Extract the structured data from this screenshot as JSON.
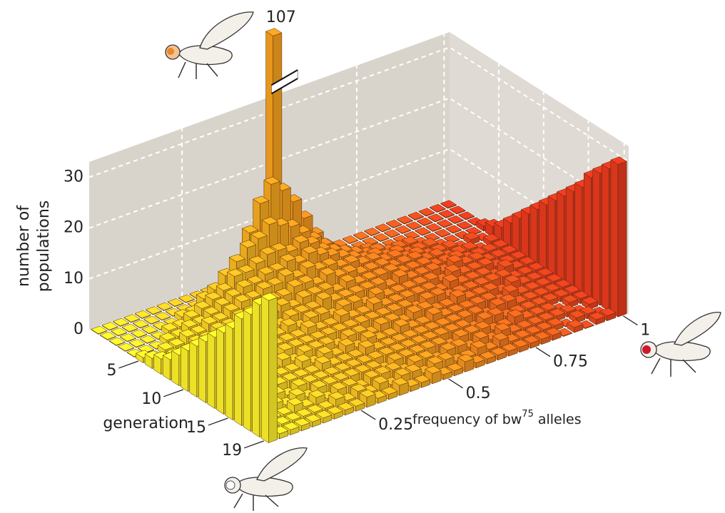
{
  "chart_data": {
    "type": "bar3d",
    "x": [
      0,
      0.03125,
      0.0625,
      0.09375,
      0.125,
      0.15625,
      0.1875,
      0.21875,
      0.25,
      0.28125,
      0.3125,
      0.34375,
      0.375,
      0.40625,
      0.4375,
      0.46875,
      0.5,
      0.53125,
      0.5625,
      0.59375,
      0.625,
      0.65625,
      0.6875,
      0.71875,
      0.75,
      0.78125,
      0.8125,
      0.84375,
      0.875,
      0.90625,
      0.9375,
      0.96875,
      1
    ],
    "generations": [
      0,
      1,
      2,
      3,
      4,
      5,
      6,
      7,
      8,
      9,
      10,
      11,
      12,
      13,
      14,
      15,
      16,
      17,
      18,
      19
    ],
    "z": [
      [
        0,
        0,
        0,
        0,
        0,
        0,
        0,
        0,
        0,
        0,
        0,
        0,
        0,
        0,
        0,
        0,
        107,
        0,
        0,
        0,
        0,
        0,
        0,
        0,
        0,
        0,
        0,
        0,
        0,
        0,
        0,
        0,
        0
      ],
      [
        0,
        0,
        0,
        0,
        0,
        0,
        0,
        0,
        0,
        0,
        1,
        3,
        6,
        11,
        16,
        19,
        17,
        14,
        10,
        6,
        3,
        1,
        0,
        0,
        0,
        0,
        0,
        0,
        0,
        0,
        0,
        0,
        0
      ],
      [
        0,
        0,
        0,
        0,
        0,
        0,
        1,
        1,
        3,
        4,
        6,
        8,
        10,
        11,
        13,
        12,
        11,
        9,
        7,
        5,
        3,
        2,
        1,
        1,
        0,
        0,
        0,
        0,
        0,
        0,
        0,
        0,
        0
      ],
      [
        0,
        0,
        0,
        0,
        1,
        1,
        2,
        3,
        4,
        5,
        7,
        7,
        8,
        9,
        9,
        8,
        9,
        8,
        6,
        5,
        4,
        3,
        2,
        2,
        1,
        1,
        1,
        0,
        0,
        0,
        0,
        0,
        0
      ],
      [
        0,
        0,
        0,
        1,
        1,
        2,
        2,
        3,
        4,
        5,
        6,
        6,
        7,
        7,
        8,
        7,
        8,
        7,
        6,
        5,
        4,
        3,
        3,
        2,
        2,
        1,
        1,
        1,
        0,
        0,
        0,
        0,
        1
      ],
      [
        1,
        0,
        1,
        1,
        2,
        2,
        3,
        3,
        4,
        5,
        5,
        6,
        6,
        7,
        6,
        7,
        6,
        6,
        5,
        5,
        4,
        4,
        3,
        3,
        2,
        2,
        1,
        1,
        1,
        0,
        1,
        0,
        2
      ],
      [
        2,
        1,
        1,
        1,
        2,
        2,
        3,
        3,
        4,
        4,
        5,
        5,
        5,
        6,
        6,
        5,
        6,
        5,
        5,
        4,
        4,
        4,
        3,
        3,
        3,
        2,
        2,
        1,
        1,
        1,
        0,
        1,
        3
      ],
      [
        3,
        1,
        1,
        2,
        2,
        2,
        3,
        3,
        3,
        4,
        4,
        5,
        4,
        5,
        5,
        5,
        4,
        5,
        4,
        4,
        4,
        4,
        3,
        3,
        3,
        2,
        2,
        2,
        1,
        1,
        1,
        1,
        5
      ],
      [
        4,
        2,
        1,
        2,
        2,
        3,
        2,
        3,
        3,
        4,
        3,
        4,
        4,
        4,
        5,
        4,
        4,
        4,
        4,
        4,
        3,
        4,
        3,
        3,
        3,
        2,
        3,
        2,
        2,
        1,
        1,
        1,
        7
      ],
      [
        6,
        1,
        2,
        2,
        2,
        2,
        3,
        3,
        3,
        3,
        4,
        3,
        4,
        4,
        3,
        4,
        4,
        3,
        4,
        3,
        3,
        3,
        3,
        3,
        2,
        3,
        2,
        2,
        2,
        1,
        1,
        1,
        9
      ],
      [
        8,
        2,
        1,
        2,
        2,
        3,
        2,
        3,
        3,
        3,
        3,
        4,
        3,
        3,
        4,
        3,
        3,
        4,
        3,
        3,
        3,
        3,
        3,
        2,
        3,
        2,
        2,
        2,
        1,
        2,
        1,
        1,
        11
      ],
      [
        10,
        1,
        2,
        2,
        2,
        2,
        3,
        2,
        3,
        3,
        3,
        3,
        3,
        3,
        3,
        3,
        3,
        3,
        3,
        3,
        2,
        3,
        3,
        2,
        2,
        2,
        2,
        2,
        2,
        1,
        1,
        1,
        13
      ],
      [
        12,
        2,
        1,
        2,
        2,
        2,
        2,
        3,
        2,
        3,
        3,
        3,
        2,
        3,
        3,
        2,
        3,
        3,
        2,
        3,
        3,
        2,
        2,
        3,
        2,
        2,
        2,
        1,
        2,
        1,
        1,
        1,
        15
      ],
      [
        14,
        1,
        2,
        1,
        2,
        2,
        2,
        2,
        3,
        2,
        3,
        2,
        3,
        2,
        3,
        2,
        2,
        3,
        2,
        2,
        3,
        2,
        2,
        2,
        2,
        2,
        1,
        2,
        1,
        1,
        1,
        1,
        17
      ],
      [
        16,
        2,
        1,
        2,
        1,
        2,
        2,
        2,
        2,
        3,
        2,
        2,
        2,
        3,
        2,
        2,
        2,
        2,
        2,
        2,
        2,
        2,
        2,
        2,
        1,
        2,
        2,
        1,
        1,
        1,
        1,
        1,
        19
      ],
      [
        18,
        1,
        2,
        1,
        2,
        1,
        2,
        2,
        2,
        2,
        2,
        2,
        2,
        2,
        2,
        2,
        2,
        2,
        2,
        2,
        2,
        2,
        1,
        2,
        2,
        1,
        1,
        1,
        1,
        1,
        1,
        1,
        21
      ],
      [
        21,
        1,
        1,
        2,
        1,
        2,
        1,
        2,
        2,
        2,
        2,
        2,
        2,
        1,
        2,
        2,
        2,
        2,
        2,
        1,
        2,
        2,
        2,
        1,
        1,
        2,
        1,
        1,
        1,
        0,
        1,
        1,
        24
      ],
      [
        23,
        1,
        1,
        1,
        2,
        1,
        2,
        1,
        2,
        2,
        1,
        2,
        2,
        2,
        1,
        2,
        2,
        1,
        2,
        2,
        1,
        2,
        1,
        2,
        1,
        1,
        1,
        1,
        1,
        1,
        0,
        1,
        26
      ],
      [
        26,
        1,
        1,
        1,
        1,
        1,
        1,
        2,
        1,
        2,
        1,
        2,
        1,
        2,
        2,
        1,
        2,
        2,
        1,
        1,
        2,
        1,
        2,
        1,
        1,
        1,
        1,
        1,
        0,
        1,
        1,
        0,
        28
      ],
      [
        28,
        1,
        1,
        1,
        1,
        1,
        1,
        1,
        1,
        2,
        1,
        1,
        2,
        1,
        1,
        2,
        1,
        1,
        2,
        1,
        1,
        1,
        1,
        1,
        1,
        1,
        1,
        0,
        1,
        0,
        1,
        1,
        30
      ]
    ],
    "ylim": [
      0,
      33
    ],
    "yticks": [
      0,
      10,
      20,
      30
    ],
    "xticks": [
      0.25,
      0.5,
      0.75,
      1
    ],
    "generation_ticks": [
      5,
      10,
      15,
      19
    ],
    "ylabel": [
      "number of",
      "populations"
    ],
    "generation_label": "generation",
    "xlabel": {
      "text": "frequency of bw",
      "sup": "75",
      "rest": "alleles"
    },
    "colors": [
      "#fff22a",
      "#f7a21e",
      "#ea3a1e"
    ],
    "wall_color": "#d9d4cb",
    "grid": true
  }
}
